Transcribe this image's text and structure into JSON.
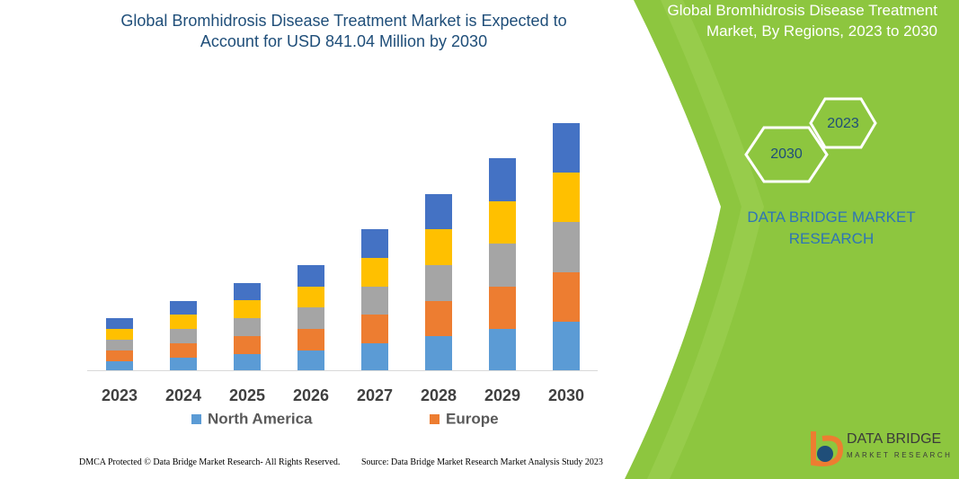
{
  "chart_data": {
    "type": "bar",
    "stacked": true,
    "title": "Global Bromhidrosis Disease Treatment Market is Expected to Account for USD 841.04 Million by 2030",
    "categories": [
      "2023",
      "2024",
      "2025",
      "2026",
      "2027",
      "2028",
      "2029",
      "2030"
    ],
    "series": [
      {
        "name": "North America",
        "color": "#5b9bd5",
        "values": [
          10,
          14,
          18,
          22,
          30,
          38,
          46,
          54
        ]
      },
      {
        "name": "Europe",
        "color": "#ed7d31",
        "values": [
          12,
          16,
          20,
          24,
          32,
          39,
          47,
          55
        ]
      },
      {
        "color": "#a5a5a5",
        "values": [
          12,
          16,
          20,
          24,
          31,
          40,
          48,
          56
        ]
      },
      {
        "color": "#ffc000",
        "values": [
          12,
          16,
          20,
          23,
          32,
          40,
          47,
          55
        ]
      },
      {
        "color": "#4472c4",
        "values": [
          12,
          15,
          19,
          24,
          32,
          39,
          48,
          55
        ]
      }
    ]
  },
  "side_panel": {
    "title": "Global Bromhidrosis Disease Treatment Market, By Regions, 2023 to 2030",
    "hex_labels": [
      "2023",
      "2030"
    ],
    "brand": "DATA BRIDGE MARKET RESEARCH"
  },
  "logo": {
    "name": "DATA BRIDGE",
    "tagline": "MARKET RESEARCH"
  },
  "footer": {
    "left": "DMCA Protected © Data Bridge Market Research- All Rights Reserved.",
    "right": "Source: Data Bridge Market Research Market Analysis Study 2023"
  }
}
